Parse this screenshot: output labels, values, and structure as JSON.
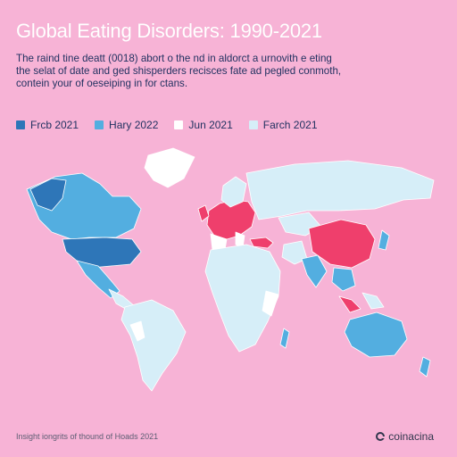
{
  "header": {
    "title": "Global Eating Disorders: 1990-2021",
    "subtitle_line1": "The raind tine deatt (0018) abort o the nd in aldorct a urnovith e eting",
    "subtitle_line2": "the selat of date and ged shisperders recisces fate ad pegled conmoth,",
    "subtitle_line3": "contein your of oeseiping in for ctans."
  },
  "legend": [
    {
      "label": "Frcb 2021",
      "color": "#2e76b8"
    },
    {
      "label": "Hary 2022",
      "color": "#53aee0"
    },
    {
      "label": "Jun 2021",
      "color": "#ffffff"
    },
    {
      "label": "Farch 2021",
      "color": "#d6eef8"
    }
  ],
  "map": {
    "colors": {
      "background": "#f7b3d6",
      "light": "#d6eef8",
      "white": "#ffffff",
      "medium": "#53aee0",
      "dark": "#2e76b8",
      "red": "#ef3f6c",
      "outline": "#ffffff"
    }
  },
  "footer": {
    "source": "Insight iongrits of thound of Hoads 2021",
    "brand": "coinacina",
    "brand_icon": "c-logo-icon"
  }
}
